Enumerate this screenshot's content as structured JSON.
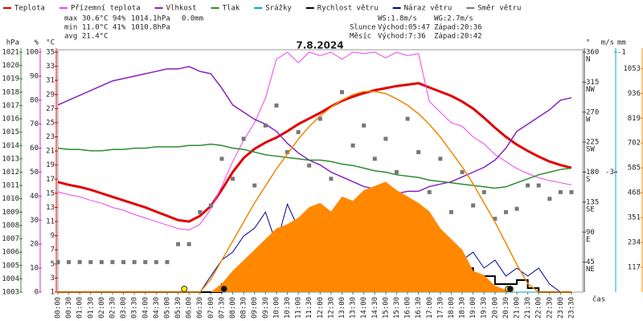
{
  "chart_data": {
    "type": "line",
    "title": "7.8.2024",
    "x_label": "čas",
    "categories": [
      "00:00",
      "00:30",
      "01:00",
      "01:30",
      "02:00",
      "02:30",
      "03:00",
      "03:30",
      "04:00",
      "04:30",
      "05:00",
      "05:30",
      "06:00",
      "06:30",
      "07:00",
      "07:30",
      "08:00",
      "08:30",
      "09:00",
      "09:30",
      "10:00",
      "10:30",
      "11:00",
      "11:30",
      "12:00",
      "12:30",
      "13:00",
      "13:30",
      "14:00",
      "14:30",
      "15:00",
      "15:30",
      "16:00",
      "16:30",
      "17:00",
      "17:30",
      "18:00",
      "18:30",
      "19:00",
      "19:30",
      "20:00",
      "20:30",
      "21:00",
      "21:30",
      "22:00",
      "22:30",
      "23:00",
      "23:30"
    ],
    "stats": [
      [
        "max",
        "30.6°C",
        "94%",
        "1014.1hPa",
        "0.0mm"
      ],
      [
        "min",
        "11.0°C",
        "41%",
        "1010.8hPa"
      ],
      [
        "avg",
        "21.4°C"
      ]
    ],
    "info": [
      [
        "WS:1.8m/s",
        "WG:2.7m/s"
      ],
      [
        "Slunce",
        "Východ:05:47",
        "Západ:20:36"
      ],
      [
        "Měsíc",
        "Východ:7:36",
        "Západ:20:42"
      ]
    ],
    "axes": {
      "pressure": {
        "label": "hPa",
        "color": "#2e8b2e",
        "lim": [
          1003,
          1021
        ],
        "ticks": [
          1003,
          1004,
          1005,
          1006,
          1007,
          1008,
          1009,
          1010,
          1011,
          1012,
          1013,
          1014,
          1015,
          1016,
          1017,
          1018,
          1019,
          1020,
          1021
        ]
      },
      "humidity": {
        "label": "%",
        "color": "#cc33cc",
        "lim": [
          0,
          100
        ],
        "ticks": [
          0,
          10,
          20,
          30,
          40,
          50,
          60,
          70,
          80,
          90,
          100
        ]
      },
      "temperature": {
        "label": "°C",
        "color": "#dd0000",
        "lim": [
          1,
          35
        ],
        "ticks": [
          1,
          3,
          5,
          7,
          9,
          11,
          13,
          15,
          17,
          19,
          21,
          23,
          25,
          27,
          29,
          31,
          33,
          35
        ]
      },
      "direction": {
        "label": "°",
        "color": "#444444",
        "lim": [
          0,
          360
        ],
        "ticks": [
          45,
          90,
          135,
          180,
          225,
          270,
          315,
          360
        ],
        "compass": [
          "NE",
          "E",
          "SE",
          "S",
          "SW",
          "W",
          "NW",
          "N"
        ]
      },
      "wind": {
        "label": "m/s",
        "color": "#000080",
        "lim": [
          0,
          6
        ],
        "ticks": [
          {
            "value": 3,
            "label": "-3"
          }
        ]
      },
      "precipitation": {
        "label": "mm",
        "color": "#00aacc",
        "lim": [
          0,
          1
        ],
        "ticks": [
          {
            "value": 1,
            "label": "-1"
          }
        ]
      },
      "solar": {
        "color": "#ff8800",
        "lim": [
          0,
          1130
        ],
        "ticks": [
          117,
          234,
          351,
          468,
          585,
          702,
          819,
          936,
          1053
        ]
      }
    },
    "series": [
      {
        "name": "Teplota",
        "color": "#e00000",
        "type": "line",
        "axis": "temperature",
        "width": 3,
        "values": [
          16.6,
          16.2,
          15.9,
          15.5,
          15.0,
          14.5,
          14.0,
          13.5,
          13.0,
          12.4,
          11.8,
          11.2,
          11.0,
          11.8,
          13.2,
          15.5,
          18.0,
          20.0,
          21.3,
          22.2,
          22.9,
          23.8,
          24.8,
          25.6,
          26.4,
          27.3,
          28.1,
          28.7,
          29.2,
          29.6,
          29.9,
          30.2,
          30.4,
          30.6,
          30.0,
          29.4,
          28.8,
          28.0,
          27.0,
          25.7,
          24.3,
          23.0,
          21.9,
          21.0,
          20.2,
          19.5,
          19.0,
          18.6
        ]
      },
      {
        "name": "Přízemní teplota",
        "color": "#ee44ee",
        "type": "line",
        "axis": "temperature",
        "width": 1,
        "values": [
          15.2,
          14.8,
          14.5,
          14.0,
          13.6,
          13.0,
          12.6,
          12.0,
          11.5,
          11.0,
          10.5,
          10.0,
          9.8,
          10.6,
          12.8,
          16.0,
          19.5,
          22.5,
          25.0,
          28.5,
          34.0,
          35.0,
          33.5,
          35.0,
          34.5,
          35.0,
          34.0,
          35.0,
          34.8,
          35.0,
          34.2,
          35.0,
          34.5,
          34.8,
          28.0,
          26.5,
          25.0,
          24.5,
          23.0,
          22.0,
          20.5,
          19.5,
          18.5,
          17.8,
          17.2,
          16.8,
          16.5,
          16.2
        ]
      },
      {
        "name": "Vlhkost",
        "color": "#8822bb",
        "type": "line",
        "axis": "humidity",
        "width": 1.5,
        "values": [
          78,
          80,
          82,
          84,
          86,
          88,
          89,
          90,
          91,
          92,
          93,
          93,
          94,
          92,
          91,
          85,
          78,
          75,
          72,
          70,
          67,
          62,
          58,
          55,
          53,
          50,
          48,
          46,
          44,
          43,
          42,
          41,
          42,
          42,
          44,
          45,
          46,
          48,
          50,
          52,
          55,
          60,
          67,
          70,
          73,
          76,
          80,
          81
        ]
      },
      {
        "name": "Tlak",
        "color": "#2e8b2e",
        "type": "line",
        "axis": "pressure",
        "width": 1.5,
        "values": [
          1013.8,
          1013.7,
          1013.7,
          1013.6,
          1013.6,
          1013.7,
          1013.7,
          1013.8,
          1013.8,
          1013.9,
          1013.9,
          1013.9,
          1014.0,
          1014.0,
          1014.1,
          1014.0,
          1013.8,
          1013.7,
          1013.5,
          1013.3,
          1013.2,
          1013.1,
          1013.0,
          1012.9,
          1012.9,
          1012.8,
          1012.6,
          1012.5,
          1012.3,
          1012.1,
          1012.0,
          1011.8,
          1011.7,
          1011.6,
          1011.4,
          1011.3,
          1011.2,
          1011.1,
          1011.0,
          1010.9,
          1010.8,
          1010.9,
          1011.2,
          1011.5,
          1011.8,
          1012.0,
          1012.2,
          1012.3
        ]
      },
      {
        "name": "Srážky",
        "color": "#00aacc",
        "type": "line",
        "axis": "precipitation",
        "width": 1,
        "values": [
          0,
          0,
          0,
          0,
          0,
          0,
          0,
          0,
          0,
          0,
          0,
          0,
          0,
          0,
          0,
          0,
          0,
          0,
          0,
          0,
          0,
          0,
          0,
          0,
          0,
          0,
          0,
          0,
          0,
          0,
          0,
          0,
          0,
          0,
          0,
          0,
          0,
          0,
          0,
          0,
          0,
          0,
          0,
          0,
          0,
          0,
          0,
          0
        ]
      },
      {
        "name": "Rychlost větru",
        "color": "#000000",
        "type": "step",
        "axis": "wind",
        "width": 2,
        "values": [
          0,
          0,
          0,
          0,
          0,
          0,
          0,
          0,
          0,
          0,
          0,
          0,
          0,
          0,
          0,
          0.2,
          0.4,
          0.5,
          0.6,
          0.8,
          0.6,
          0.8,
          1.0,
          0.8,
          1.0,
          1.2,
          0.8,
          1.0,
          1.3,
          1.0,
          1.2,
          0.8,
          1.0,
          0.6,
          0.8,
          0.6,
          0.4,
          0.6,
          0.3,
          0.4,
          0.2,
          0.2,
          0.3,
          0.1,
          0,
          0,
          0,
          0
        ]
      },
      {
        "name": "Náraz větru",
        "color": "#000090",
        "type": "line",
        "axis": "wind",
        "width": 1,
        "values": [
          0,
          0,
          0,
          0,
          0,
          0,
          0,
          0,
          0,
          0,
          0,
          0,
          0,
          0,
          0.4,
          0.8,
          1.0,
          1.4,
          1.6,
          2.0,
          1.2,
          2.2,
          1.6,
          1.8,
          2.0,
          1.4,
          2.2,
          1.6,
          2.4,
          1.8,
          2.0,
          2.2,
          1.6,
          1.4,
          1.8,
          1.0,
          1.2,
          0.8,
          1.0,
          0.6,
          0.8,
          0.4,
          0.6,
          0.4,
          0.6,
          0.2,
          0,
          0
        ]
      },
      {
        "name": "Směr větru",
        "color": "#777777",
        "type": "scatter",
        "axis": "direction",
        "values": [
          45,
          45,
          45,
          45,
          45,
          45,
          45,
          45,
          45,
          45,
          45,
          72,
          72,
          120,
          130,
          200,
          170,
          230,
          160,
          250,
          280,
          210,
          240,
          190,
          260,
          170,
          300,
          220,
          250,
          200,
          230,
          180,
          260,
          210,
          150,
          200,
          120,
          180,
          130,
          150,
          110,
          120,
          125,
          160,
          160,
          140,
          150,
          150
        ]
      },
      {
        "color": "#ff8800",
        "type": "area",
        "axis": "solar",
        "values": [
          0,
          0,
          0,
          0,
          0,
          0,
          0,
          0,
          0,
          0,
          0,
          0,
          0,
          0,
          0,
          40,
          100,
          150,
          200,
          250,
          300,
          320,
          350,
          400,
          420,
          380,
          450,
          430,
          480,
          500,
          520,
          480,
          450,
          420,
          380,
          300,
          250,
          200,
          100,
          80,
          30,
          10,
          0,
          0,
          0,
          0,
          0,
          0
        ]
      },
      {
        "color": "#ee8800",
        "type": "line",
        "axis": "solar",
        "width": 1.5,
        "values": [
          0,
          0,
          0,
          0,
          0,
          0,
          0,
          0,
          0,
          0,
          0,
          0,
          0,
          0,
          60,
          150,
          240,
          330,
          420,
          500,
          580,
          650,
          720,
          780,
          830,
          870,
          905,
          930,
          945,
          945,
          935,
          910,
          880,
          840,
          790,
          730,
          660,
          590,
          510,
          420,
          330,
          230,
          130,
          40,
          0,
          0,
          0,
          0
        ]
      }
    ]
  }
}
